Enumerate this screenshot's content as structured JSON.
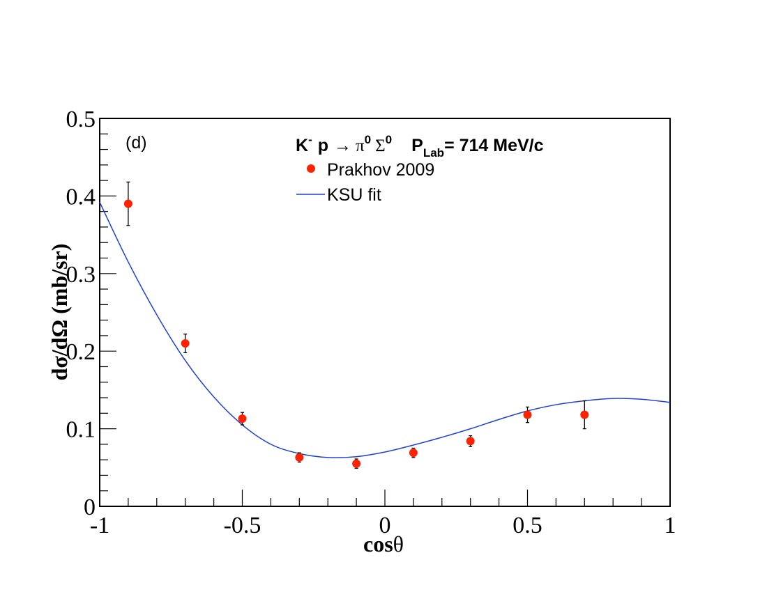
{
  "chart_data": {
    "type": "scatter",
    "panel_label": "(d)",
    "title": {
      "k": "K",
      "k_sup": "-",
      "p": "p",
      "arrow": "→",
      "pi": "π",
      "pi_sup": "0",
      "sigma": "Σ",
      "sigma_sup": "0",
      "plab_p": "P",
      "plab_sub": "Lab",
      "plab_value": "= 714 MeV/c"
    },
    "xlabel": {
      "main": "cos",
      "sym": "θ"
    },
    "ylabel": "dσ/dΩ (mb/sr)",
    "xlim": [
      -1,
      1
    ],
    "ylim": [
      0,
      0.5
    ],
    "x_ticks": [
      -1,
      -0.5,
      0,
      0.5,
      1
    ],
    "x_tick_labels": [
      "-1",
      "-0.5",
      "0",
      "0.5",
      "1"
    ],
    "y_ticks": [
      0,
      0.1,
      0.2,
      0.3,
      0.4,
      0.5
    ],
    "y_tick_labels": [
      "0",
      "0.1",
      "0.2",
      "0.3",
      "0.4",
      "0.5"
    ],
    "legend": {
      "position": "top-center",
      "entries": [
        {
          "label": "Prakhov 2009",
          "marker": "circle"
        },
        {
          "label": "KSU fit",
          "marker": "line"
        }
      ]
    },
    "series": [
      {
        "name": "Prakhov 2009",
        "kind": "points",
        "color": "#ff2200",
        "x": [
          -0.9,
          -0.7,
          -0.5,
          -0.3,
          -0.1,
          0.1,
          0.3,
          0.5,
          0.7
        ],
        "y": [
          0.39,
          0.21,
          0.113,
          0.063,
          0.055,
          0.069,
          0.084,
          0.118,
          0.118
        ],
        "err": [
          0.028,
          0.012,
          0.008,
          0.006,
          0.006,
          0.006,
          0.007,
          0.01,
          0.018
        ]
      },
      {
        "name": "KSU fit",
        "kind": "line",
        "color": "#1f3fd8",
        "x": [
          -1.0,
          -0.9,
          -0.8,
          -0.7,
          -0.6,
          -0.5,
          -0.4,
          -0.3,
          -0.2,
          -0.1,
          0.0,
          0.1,
          0.2,
          0.3,
          0.4,
          0.5,
          0.6,
          0.7,
          0.8,
          0.9,
          1.0
        ],
        "y": [
          0.392,
          0.315,
          0.247,
          0.188,
          0.141,
          0.105,
          0.08,
          0.068,
          0.063,
          0.064,
          0.07,
          0.079,
          0.089,
          0.1,
          0.112,
          0.123,
          0.131,
          0.136,
          0.139,
          0.138,
          0.134
        ]
      }
    ]
  }
}
